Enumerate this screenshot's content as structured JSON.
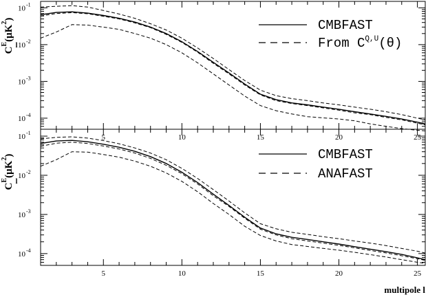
{
  "chart_data": [
    {
      "type": "line",
      "ylabel": "C",
      "ylabel_sup": "E",
      "ylabel_sub": "l",
      "ylabel_units": "(μK",
      "ylabel_units_sup": "2",
      "ylabel_units_close": ")",
      "yscale": "log",
      "ylim": [
        5e-05,
        0.15
      ],
      "xlim": [
        1,
        25.5
      ],
      "x_ticks": [
        5,
        10,
        15,
        20,
        25
      ],
      "y_ticks": [
        {
          "base": "10",
          "exp": "-1",
          "value": 0.1
        },
        {
          "base": "10",
          "exp": "-2",
          "value": 0.01
        },
        {
          "base": "10",
          "exp": "-3",
          "value": 0.001
        },
        {
          "base": "10",
          "exp": "-4",
          "value": 0.0001
        }
      ],
      "legend": [
        {
          "label": "CMBFAST",
          "style": "solid"
        },
        {
          "label": "From C",
          "sup": "Q,U",
          "suffix": "(θ)",
          "style": "dashed"
        }
      ],
      "x": [
        1,
        2,
        3,
        4,
        5,
        6,
        7,
        8,
        9,
        10,
        11,
        12,
        13,
        14,
        15,
        16,
        17,
        18,
        19,
        20,
        21,
        22,
        23,
        24,
        25,
        25.5
      ],
      "series": [
        {
          "name": "CMBFAST",
          "style": "solid",
          "values": [
            0.065,
            0.075,
            0.078,
            0.072,
            0.062,
            0.052,
            0.041,
            0.03,
            0.02,
            0.012,
            0.0065,
            0.0033,
            0.0017,
            0.00085,
            0.00045,
            0.00032,
            0.00026,
            0.00023,
            0.0002,
            0.000175,
            0.00015,
            0.00013,
            0.000112,
            9.5e-05,
            7.8e-05,
            7e-05
          ]
        },
        {
          "style": "dashed",
          "values": [
            0.105,
            0.11,
            0.115,
            0.105,
            0.085,
            0.068,
            0.052,
            0.037,
            0.025,
            0.015,
            0.0081,
            0.0042,
            0.0021,
            0.00106,
            0.00058,
            0.00041,
            0.00034,
            0.0003,
            0.00026,
            0.00023,
            0.0002,
            0.000175,
            0.00015,
            0.000125,
            0.0001,
            9e-05
          ]
        },
        {
          "style": "dashed",
          "values": [
            0.06,
            0.07,
            0.074,
            0.069,
            0.059,
            0.05,
            0.039,
            0.029,
            0.019,
            0.0115,
            0.0062,
            0.0031,
            0.0016,
            0.0008,
            0.00043,
            0.0003,
            0.00025,
            0.00022,
            0.00019,
            0.000165,
            0.00014,
            0.000125,
            0.000105,
            9e-05,
            7.3e-05,
            6.6e-05
          ]
        },
        {
          "style": "dashed",
          "values": [
            0.015,
            0.022,
            0.035,
            0.034,
            0.03,
            0.026,
            0.02,
            0.015,
            0.01,
            0.006,
            0.0032,
            0.0016,
            0.0008,
            0.0004,
            0.00022,
            0.00016,
            0.00013,
            0.00011,
            0.000102,
            9.5e-05,
            8.5e-05,
            7e-05,
            6e-05,
            5.2e-05,
            4.7e-05,
            4.5e-05
          ]
        }
      ]
    },
    {
      "type": "line",
      "ylabel": "C",
      "ylabel_sup": "E",
      "ylabel_sub": "l",
      "ylabel_units": "(μK",
      "ylabel_units_sup": "2",
      "ylabel_units_close": ")",
      "xlabel": "multipole l",
      "yscale": "log",
      "ylim": [
        5e-05,
        0.15
      ],
      "xlim": [
        1,
        25.5
      ],
      "x_ticks": [
        5,
        10,
        15,
        20,
        25
      ],
      "y_ticks": [
        {
          "base": "10",
          "exp": "-1",
          "value": 0.1
        },
        {
          "base": "10",
          "exp": "-2",
          "value": 0.01
        },
        {
          "base": "10",
          "exp": "-3",
          "value": 0.001
        },
        {
          "base": "10",
          "exp": "-4",
          "value": 0.0001
        }
      ],
      "legend": [
        {
          "label": "CMBFAST",
          "style": "solid"
        },
        {
          "label": "ANAFAST",
          "style": "dashed"
        }
      ],
      "x": [
        1,
        2,
        3,
        4,
        5,
        6,
        7,
        8,
        9,
        10,
        11,
        12,
        13,
        14,
        15,
        16,
        17,
        18,
        19,
        20,
        21,
        22,
        23,
        24,
        25,
        25.5
      ],
      "series": [
        {
          "name": "CMBFAST",
          "style": "solid",
          "values": [
            0.065,
            0.075,
            0.078,
            0.072,
            0.062,
            0.052,
            0.041,
            0.03,
            0.02,
            0.012,
            0.0065,
            0.0033,
            0.0017,
            0.00085,
            0.00045,
            0.00032,
            0.00026,
            0.00023,
            0.0002,
            0.000175,
            0.00015,
            0.00013,
            0.000112,
            9.5e-05,
            7.8e-05,
            7e-05
          ]
        },
        {
          "style": "dashed",
          "values": [
            0.085,
            0.093,
            0.096,
            0.089,
            0.077,
            0.064,
            0.05,
            0.037,
            0.025,
            0.015,
            0.0083,
            0.0043,
            0.0022,
            0.0011,
            0.00058,
            0.00043,
            0.00035,
            0.00031,
            0.00027,
            0.00024,
            0.00021,
            0.000185,
            0.00016,
            0.000135,
            0.000115,
            0.000103
          ]
        },
        {
          "style": "dashed",
          "values": [
            0.055,
            0.066,
            0.07,
            0.065,
            0.056,
            0.047,
            0.037,
            0.027,
            0.018,
            0.011,
            0.006,
            0.003,
            0.0016,
            0.0008,
            0.00042,
            0.0003,
            0.00024,
            0.00021,
            0.000185,
            0.000162,
            0.00014,
            0.00012,
            0.000104,
            8.8e-05,
            7.4e-05,
            6.7e-05
          ]
        },
        {
          "style": "dashed",
          "values": [
            0.017,
            0.025,
            0.04,
            0.039,
            0.034,
            0.029,
            0.023,
            0.017,
            0.0115,
            0.007,
            0.0038,
            0.0019,
            0.001,
            0.0005,
            0.00029,
            0.00021,
            0.00017,
            0.000152,
            0.000136,
            0.000122,
            0.000108,
            9.4e-05,
            8.2e-05,
            7e-05,
            6e-05,
            5.6e-05
          ]
        }
      ]
    }
  ]
}
